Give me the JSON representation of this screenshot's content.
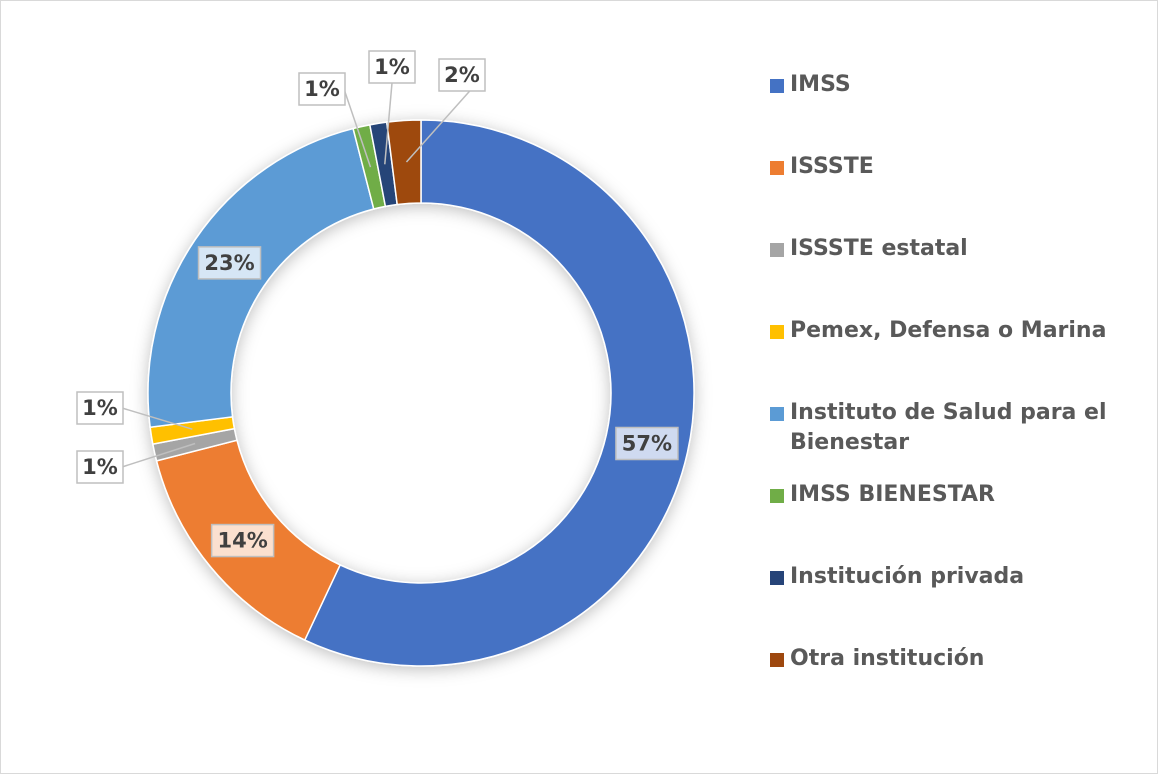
{
  "chart_data": {
    "type": "donut",
    "categories": [
      "IMSS",
      "ISSSTE",
      "ISSSTE estatal",
      "Pemex, Defensa o Marina",
      "Instituto de Salud para el Bienestar",
      "IMSS BIENESTAR",
      "Institución privada",
      "Otra institución"
    ],
    "values": [
      57,
      14,
      1,
      1,
      23,
      1,
      1,
      2
    ],
    "value_labels": [
      "57%",
      "14%",
      "1%",
      "1%",
      "23%",
      "1%",
      "1%",
      "2%"
    ],
    "colors": [
      "#4472c4",
      "#ed7d31",
      "#a5a5a5",
      "#ffc000",
      "#5b9bd5",
      "#70ad47",
      "#264478",
      "#9e480e"
    ],
    "legend": "right"
  }
}
